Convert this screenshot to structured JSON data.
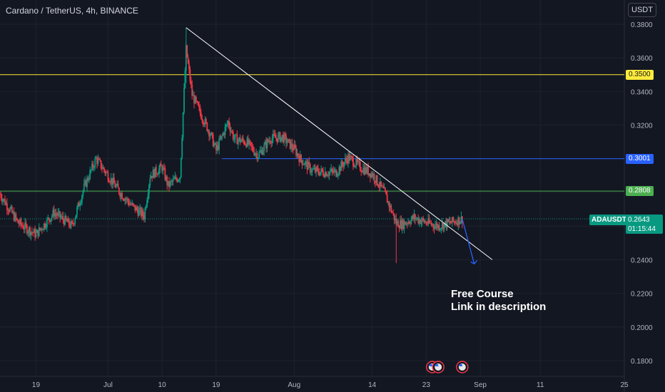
{
  "header": {
    "title": "Cardano / TetherUS, 4h, BINANCE",
    "currency": "USDT"
  },
  "annotation": {
    "line1": "Free Course",
    "line2": "Link in description"
  },
  "colors": {
    "background": "#131722",
    "up": "#089981",
    "down": "#f23645",
    "yellow": "#ffeb3b",
    "blue": "#2962ff",
    "green": "#4caf50",
    "trendline": "#ffffff",
    "axis_text": "#b2b5be"
  },
  "chart_data": {
    "type": "candlestick",
    "symbol": "ADAUSDT",
    "timeframe": "4h",
    "ylim": [
      0.17,
      0.39
    ],
    "y_ticks": [
      "0.3800",
      "0.3600",
      "0.3400",
      "0.3200",
      "0.3000",
      "0.2800",
      "0.2600",
      "0.2400",
      "0.2200",
      "0.2000",
      "0.1800"
    ],
    "x_ticks": [
      "19",
      "Jul",
      "10",
      "19",
      "Aug",
      "14",
      "23",
      "Sep",
      "11",
      "25"
    ],
    "x_range": [
      "2023-06-13",
      "2023-09-25"
    ],
    "horizontal_levels": [
      {
        "value": 0.35,
        "label": "0.3500",
        "color": "#ffeb3b",
        "bg": "#ffeb3b",
        "fg": "#131722",
        "start": "2023-06-13"
      },
      {
        "value": 0.3001,
        "label": "0.3001",
        "color": "#2962ff",
        "bg": "#2962ff",
        "fg": "#ffffff",
        "start": "2023-07-20"
      },
      {
        "value": 0.2808,
        "label": "0.2808",
        "color": "#4caf50",
        "bg": "#4caf50",
        "fg": "#ffffff",
        "start": "2023-06-13"
      }
    ],
    "trendline": {
      "from": {
        "date": "2023-07-14",
        "price": 0.378
      },
      "to": {
        "date": "2023-09-03",
        "price": 0.24
      }
    },
    "arrow": {
      "from": {
        "date": "2023-08-29",
        "price": 0.2643
      },
      "to": {
        "date": "2023-08-31",
        "price": 0.2375
      }
    },
    "current_price": {
      "value": 0.2643,
      "label": "0.2643",
      "countdown": "01:15:44"
    },
    "price_series": [
      [
        "2023-06-13",
        0.279
      ],
      [
        "2023-06-16",
        0.262
      ],
      [
        "2023-06-19",
        0.255
      ],
      [
        "2023-06-22",
        0.268
      ],
      [
        "2023-06-25",
        0.26
      ],
      [
        "2023-06-27",
        0.283
      ],
      [
        "2023-06-29",
        0.3
      ],
      [
        "2023-07-01",
        0.29
      ],
      [
        "2023-07-03",
        0.28
      ],
      [
        "2023-07-05",
        0.272
      ],
      [
        "2023-07-07",
        0.266
      ],
      [
        "2023-07-08",
        0.29
      ],
      [
        "2023-07-10",
        0.295
      ],
      [
        "2023-07-11",
        0.284
      ],
      [
        "2023-07-13",
        0.29
      ],
      [
        "2023-07-14",
        0.365
      ],
      [
        "2023-07-15",
        0.338
      ],
      [
        "2023-07-16",
        0.33
      ],
      [
        "2023-07-18",
        0.315
      ],
      [
        "2023-07-19",
        0.305
      ],
      [
        "2023-07-21",
        0.322
      ],
      [
        "2023-07-22",
        0.312
      ],
      [
        "2023-07-24",
        0.31
      ],
      [
        "2023-07-26",
        0.302
      ],
      [
        "2023-07-28",
        0.312
      ],
      [
        "2023-07-30",
        0.313
      ],
      [
        "2023-08-01",
        0.306
      ],
      [
        "2023-08-02",
        0.3
      ],
      [
        "2023-08-04",
        0.293
      ],
      [
        "2023-08-06",
        0.292
      ],
      [
        "2023-08-08",
        0.292
      ],
      [
        "2023-08-10",
        0.301
      ],
      [
        "2023-08-12",
        0.295
      ],
      [
        "2023-08-14",
        0.291
      ],
      [
        "2023-08-16",
        0.28
      ],
      [
        "2023-08-18",
        0.262
      ],
      [
        "2023-08-19",
        0.261
      ],
      [
        "2023-08-21",
        0.265
      ],
      [
        "2023-08-23",
        0.262
      ],
      [
        "2023-08-25",
        0.26
      ],
      [
        "2023-08-27",
        0.262
      ],
      [
        "2023-08-29",
        0.2643
      ]
    ],
    "events": [
      "2023-08-24",
      "2023-08-25",
      "2023-08-29"
    ]
  }
}
